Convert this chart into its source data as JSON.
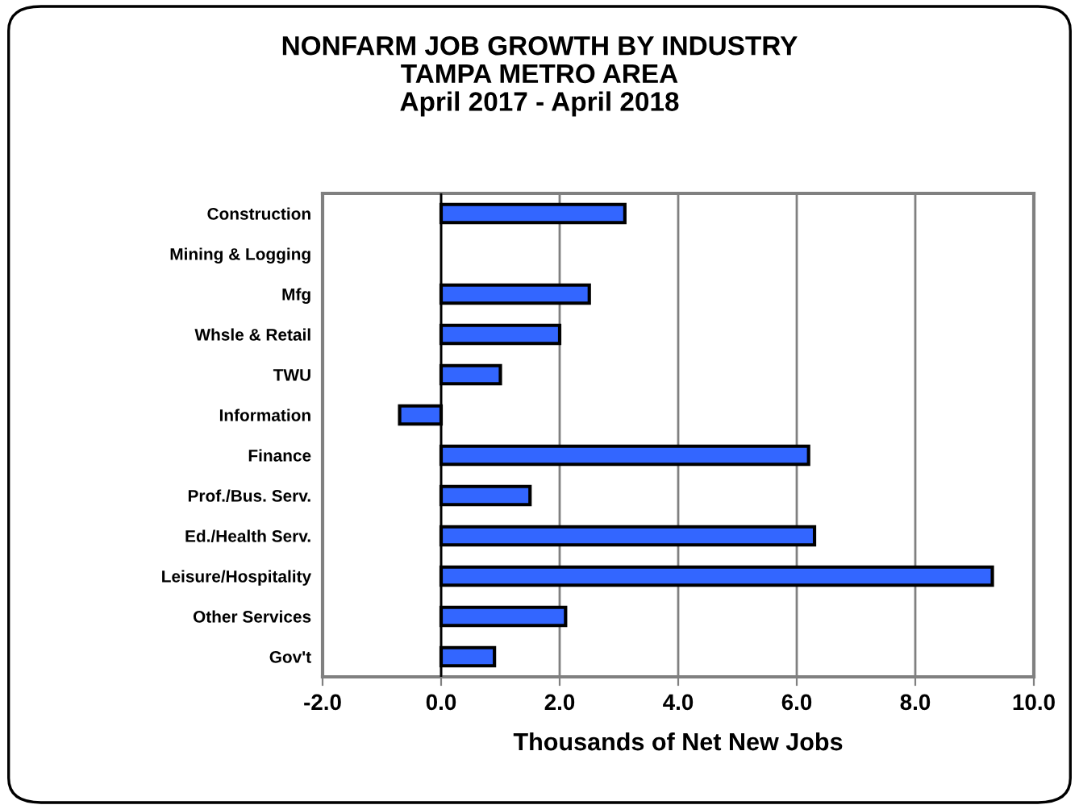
{
  "chart_data": {
    "type": "bar",
    "orientation": "horizontal",
    "title": "NONFARM JOB GROWTH BY INDUSTRY\nTAMPA METRO AREA\nApril 2017 - April 2018",
    "xlabel": "Thousands of Net New Jobs",
    "categories": [
      "Construction",
      "Mining & Logging",
      "Mfg",
      "Whsle & Retail",
      "TWU",
      "Information",
      "Finance",
      "Prof./Bus. Serv.",
      "Ed./Health Serv.",
      "Leisure/Hospitality",
      "Other Services",
      "Gov't"
    ],
    "values": [
      3.1,
      null,
      2.5,
      2.0,
      1.0,
      -0.7,
      6.2,
      1.5,
      6.3,
      9.3,
      2.1,
      0.9
    ],
    "color": "#3366ff",
    "xlim": [
      -2,
      10
    ],
    "xticks": [
      {
        "value": -2,
        "label": "-2.0"
      },
      {
        "value": 0,
        "label": "0.0"
      },
      {
        "value": 2,
        "label": "2.0"
      },
      {
        "value": 4,
        "label": "4.0"
      },
      {
        "value": 6,
        "label": "6.0"
      },
      {
        "value": 8,
        "label": "8.0"
      },
      {
        "value": 10,
        "label": "10.0"
      }
    ],
    "grid": "x"
  }
}
